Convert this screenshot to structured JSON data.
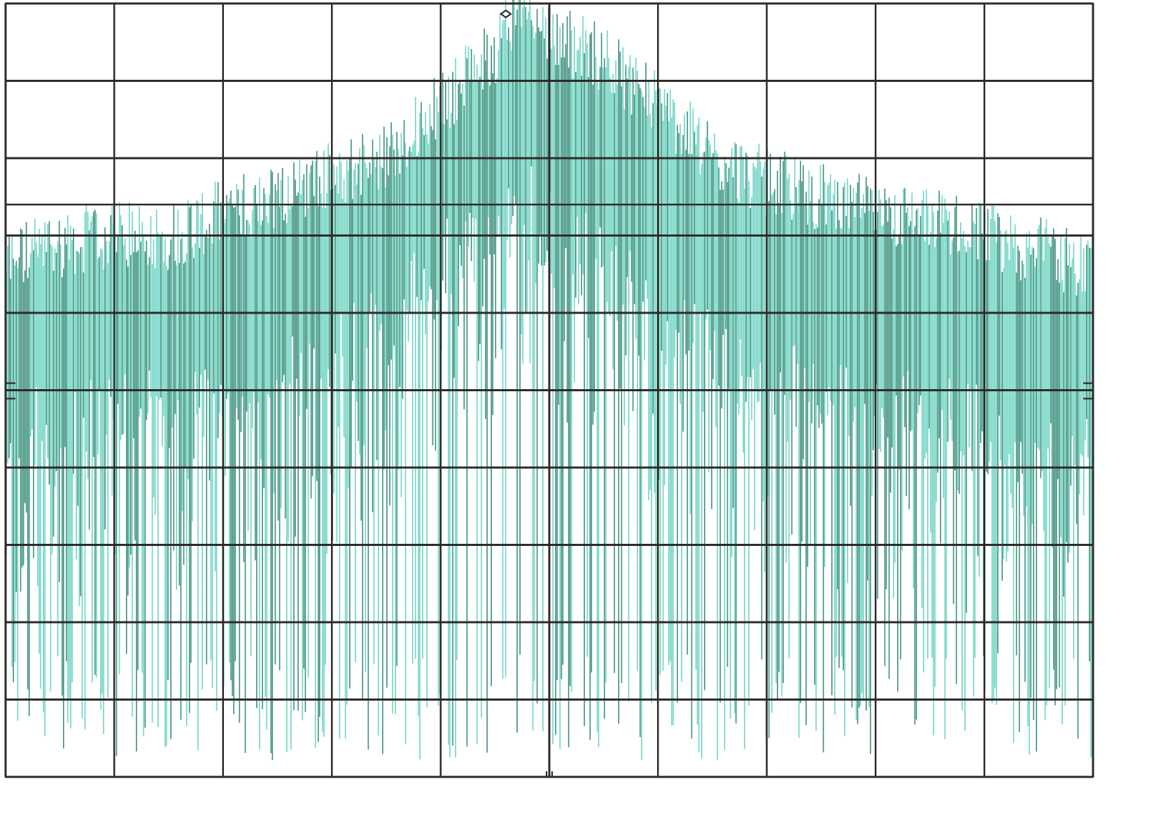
{
  "chart_data": {
    "type": "line",
    "title": "",
    "xlabel": "",
    "ylabel": "",
    "grid": true,
    "xlim": [
      0,
      10
    ],
    "ylim": [
      -10,
      0
    ],
    "grid_divisions": {
      "x": 10,
      "y": 10
    },
    "extra_gridline_y": -2.6,
    "series": [
      {
        "style": "dense vertical spectral trace (comb of spectral lines)",
        "envelope": {
          "x": [
            0.0,
            0.5,
            1.0,
            1.5,
            2.0,
            2.5,
            3.0,
            3.5,
            4.0,
            4.5,
            4.75,
            5.0,
            5.5,
            6.0,
            6.5,
            7.0,
            7.5,
            8.0,
            8.5,
            9.0,
            9.5,
            10.0
          ],
          "y_top": [
            -3.6,
            -3.4,
            -3.3,
            -3.3,
            -3.0,
            -2.8,
            -2.5,
            -2.3,
            -1.6,
            -0.9,
            -0.2,
            -0.7,
            -1.0,
            -1.6,
            -2.3,
            -2.6,
            -2.8,
            -3.0,
            -3.1,
            -3.3,
            -3.5,
            -3.7
          ],
          "y_body": [
            -5.0,
            -4.9,
            -4.8,
            -4.6,
            -4.5,
            -4.3,
            -4.0,
            -3.6,
            -2.8,
            -2.2,
            -2.0,
            -2.3,
            -2.8,
            -3.5,
            -4.0,
            -4.3,
            -4.5,
            -4.6,
            -4.8,
            -4.9,
            -5.0,
            -5.1
          ],
          "y_floor": -9.8
        },
        "color": "#43a390"
      }
    ],
    "marker": {
      "x": 4.6,
      "y": -0.08,
      "shape": "diamond"
    },
    "colors": {
      "grid": "#2e2a28",
      "trace_dark": "#3c8f7c",
      "trace_light": "#6fd4c4",
      "background": "#ffffff"
    }
  }
}
